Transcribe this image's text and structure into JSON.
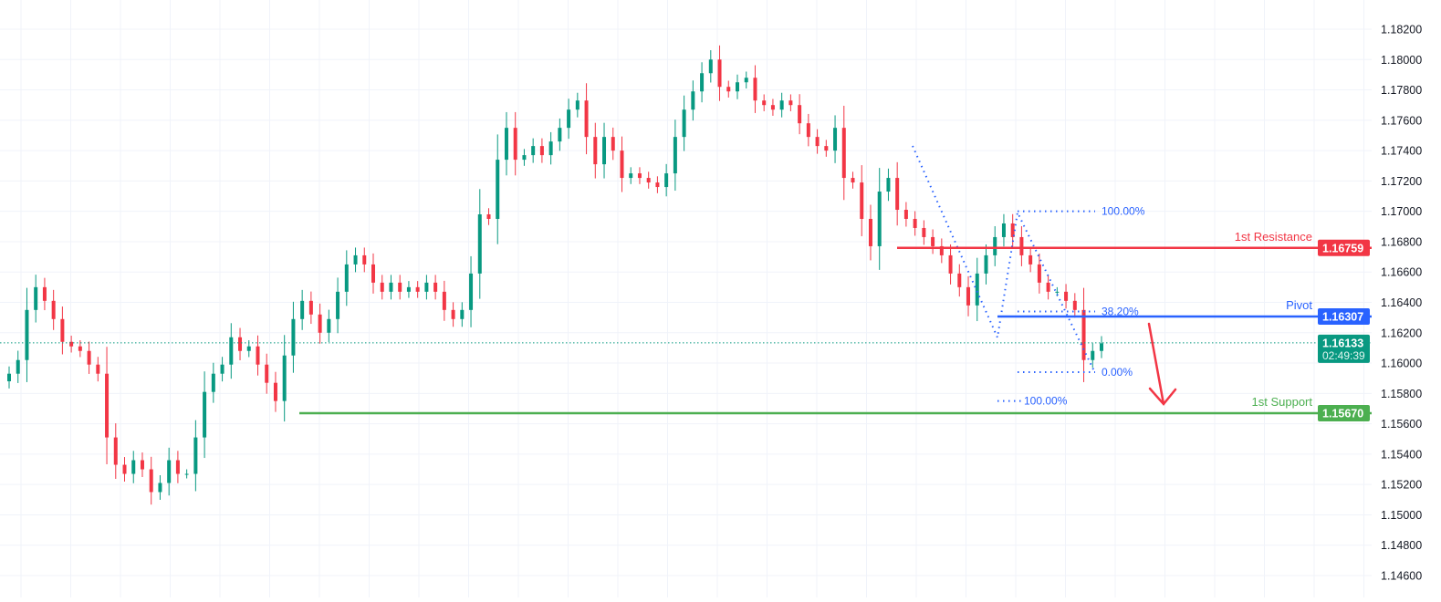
{
  "chart_data": {
    "type": "candlestick",
    "title": "",
    "xlabel": "",
    "ylabel": "",
    "ylim": [
      1.1455,
      1.1835
    ],
    "grid": true,
    "y_ticks": [
      "1.18200",
      "1.18000",
      "1.17800",
      "1.17600",
      "1.17400",
      "1.17200",
      "1.17000",
      "1.16800",
      "1.16600",
      "1.16400",
      "1.16200",
      "1.16000",
      "1.15800",
      "1.15600",
      "1.15400",
      "1.15200",
      "1.15000",
      "1.14800",
      "1.14600"
    ],
    "y_tick_values": [
      1.182,
      1.18,
      1.178,
      1.176,
      1.174,
      1.172,
      1.17,
      1.168,
      1.166,
      1.164,
      1.162,
      1.16,
      1.158,
      1.156,
      1.154,
      1.152,
      1.15,
      1.148,
      1.146
    ],
    "close": [
      1.1593,
      1.1602,
      1.1635,
      1.165,
      1.1641,
      1.1629,
      1.1614,
      1.1611,
      1.1608,
      1.1599,
      1.1593,
      1.1551,
      1.1533,
      1.1527,
      1.1536,
      1.153,
      1.1515,
      1.1521,
      1.1536,
      1.1527,
      1.1527,
      1.1551,
      1.1581,
      1.1593,
      1.1599,
      1.1617,
      1.1608,
      1.1611,
      1.1599,
      1.1587,
      1.1575,
      1.1605,
      1.1629,
      1.1641,
      1.1632,
      1.162,
      1.1629,
      1.1647,
      1.1665,
      1.1671,
      1.1665,
      1.1653,
      1.1647,
      1.1653,
      1.1647,
      1.165,
      1.1647,
      1.1653,
      1.1647,
      1.1635,
      1.1629,
      1.1635,
      1.1659,
      1.1698,
      1.1695,
      1.1734,
      1.1755,
      1.1734,
      1.1737,
      1.1743,
      1.1737,
      1.1746,
      1.1755,
      1.1767,
      1.1773,
      1.1749,
      1.1731,
      1.1749,
      1.174,
      1.1722,
      1.1725,
      1.1722,
      1.1719,
      1.1716,
      1.1725,
      1.1749,
      1.1767,
      1.1779,
      1.1791,
      1.18,
      1.1782,
      1.1779,
      1.1785,
      1.1788,
      1.1773,
      1.177,
      1.1767,
      1.1773,
      1.177,
      1.1758,
      1.1749,
      1.1743,
      1.174,
      1.1755,
      1.1722,
      1.1719,
      1.1695,
      1.1677,
      1.1713,
      1.1722,
      1.1701,
      1.1695,
      1.1689,
      1.1683,
      1.1677,
      1.1671,
      1.1659,
      1.165,
      1.1638,
      1.1659,
      1.1671,
      1.1683,
      1.1692,
      1.1683,
      1.1671,
      1.1665,
      1.1653,
      1.1647,
      1.1647,
      1.1641,
      1.1635,
      1.1602,
      1.1608,
      1.1613
    ],
    "levels": [
      {
        "name": "1st Resistance",
        "value": 1.16759,
        "label": "1.16759",
        "color": "#f23645"
      },
      {
        "name": "Pivot",
        "value": 1.16307,
        "label": "1.16307",
        "color": "#2962ff"
      },
      {
        "name": "1st Support",
        "value": 1.1567,
        "label": "1.15670",
        "color": "#4caf50"
      }
    ],
    "current_price": {
      "label": "1.16133",
      "value": 1.16133,
      "countdown": "02:49:39",
      "color": "#089981"
    },
    "fibonacci": [
      {
        "label": "100.00%",
        "value": 1.17
      },
      {
        "label": "38.20%",
        "value": 1.1634
      },
      {
        "label": "0.00%",
        "value": 1.1594
      },
      {
        "label": "100.00%",
        "value": 1.1575
      }
    ],
    "colors": {
      "up": "#089981",
      "down": "#f23645",
      "fib": "#2962ff",
      "arrow": "#f23645",
      "grid": "#f0f3fa"
    },
    "annotation": "bearish-arrow-down"
  }
}
